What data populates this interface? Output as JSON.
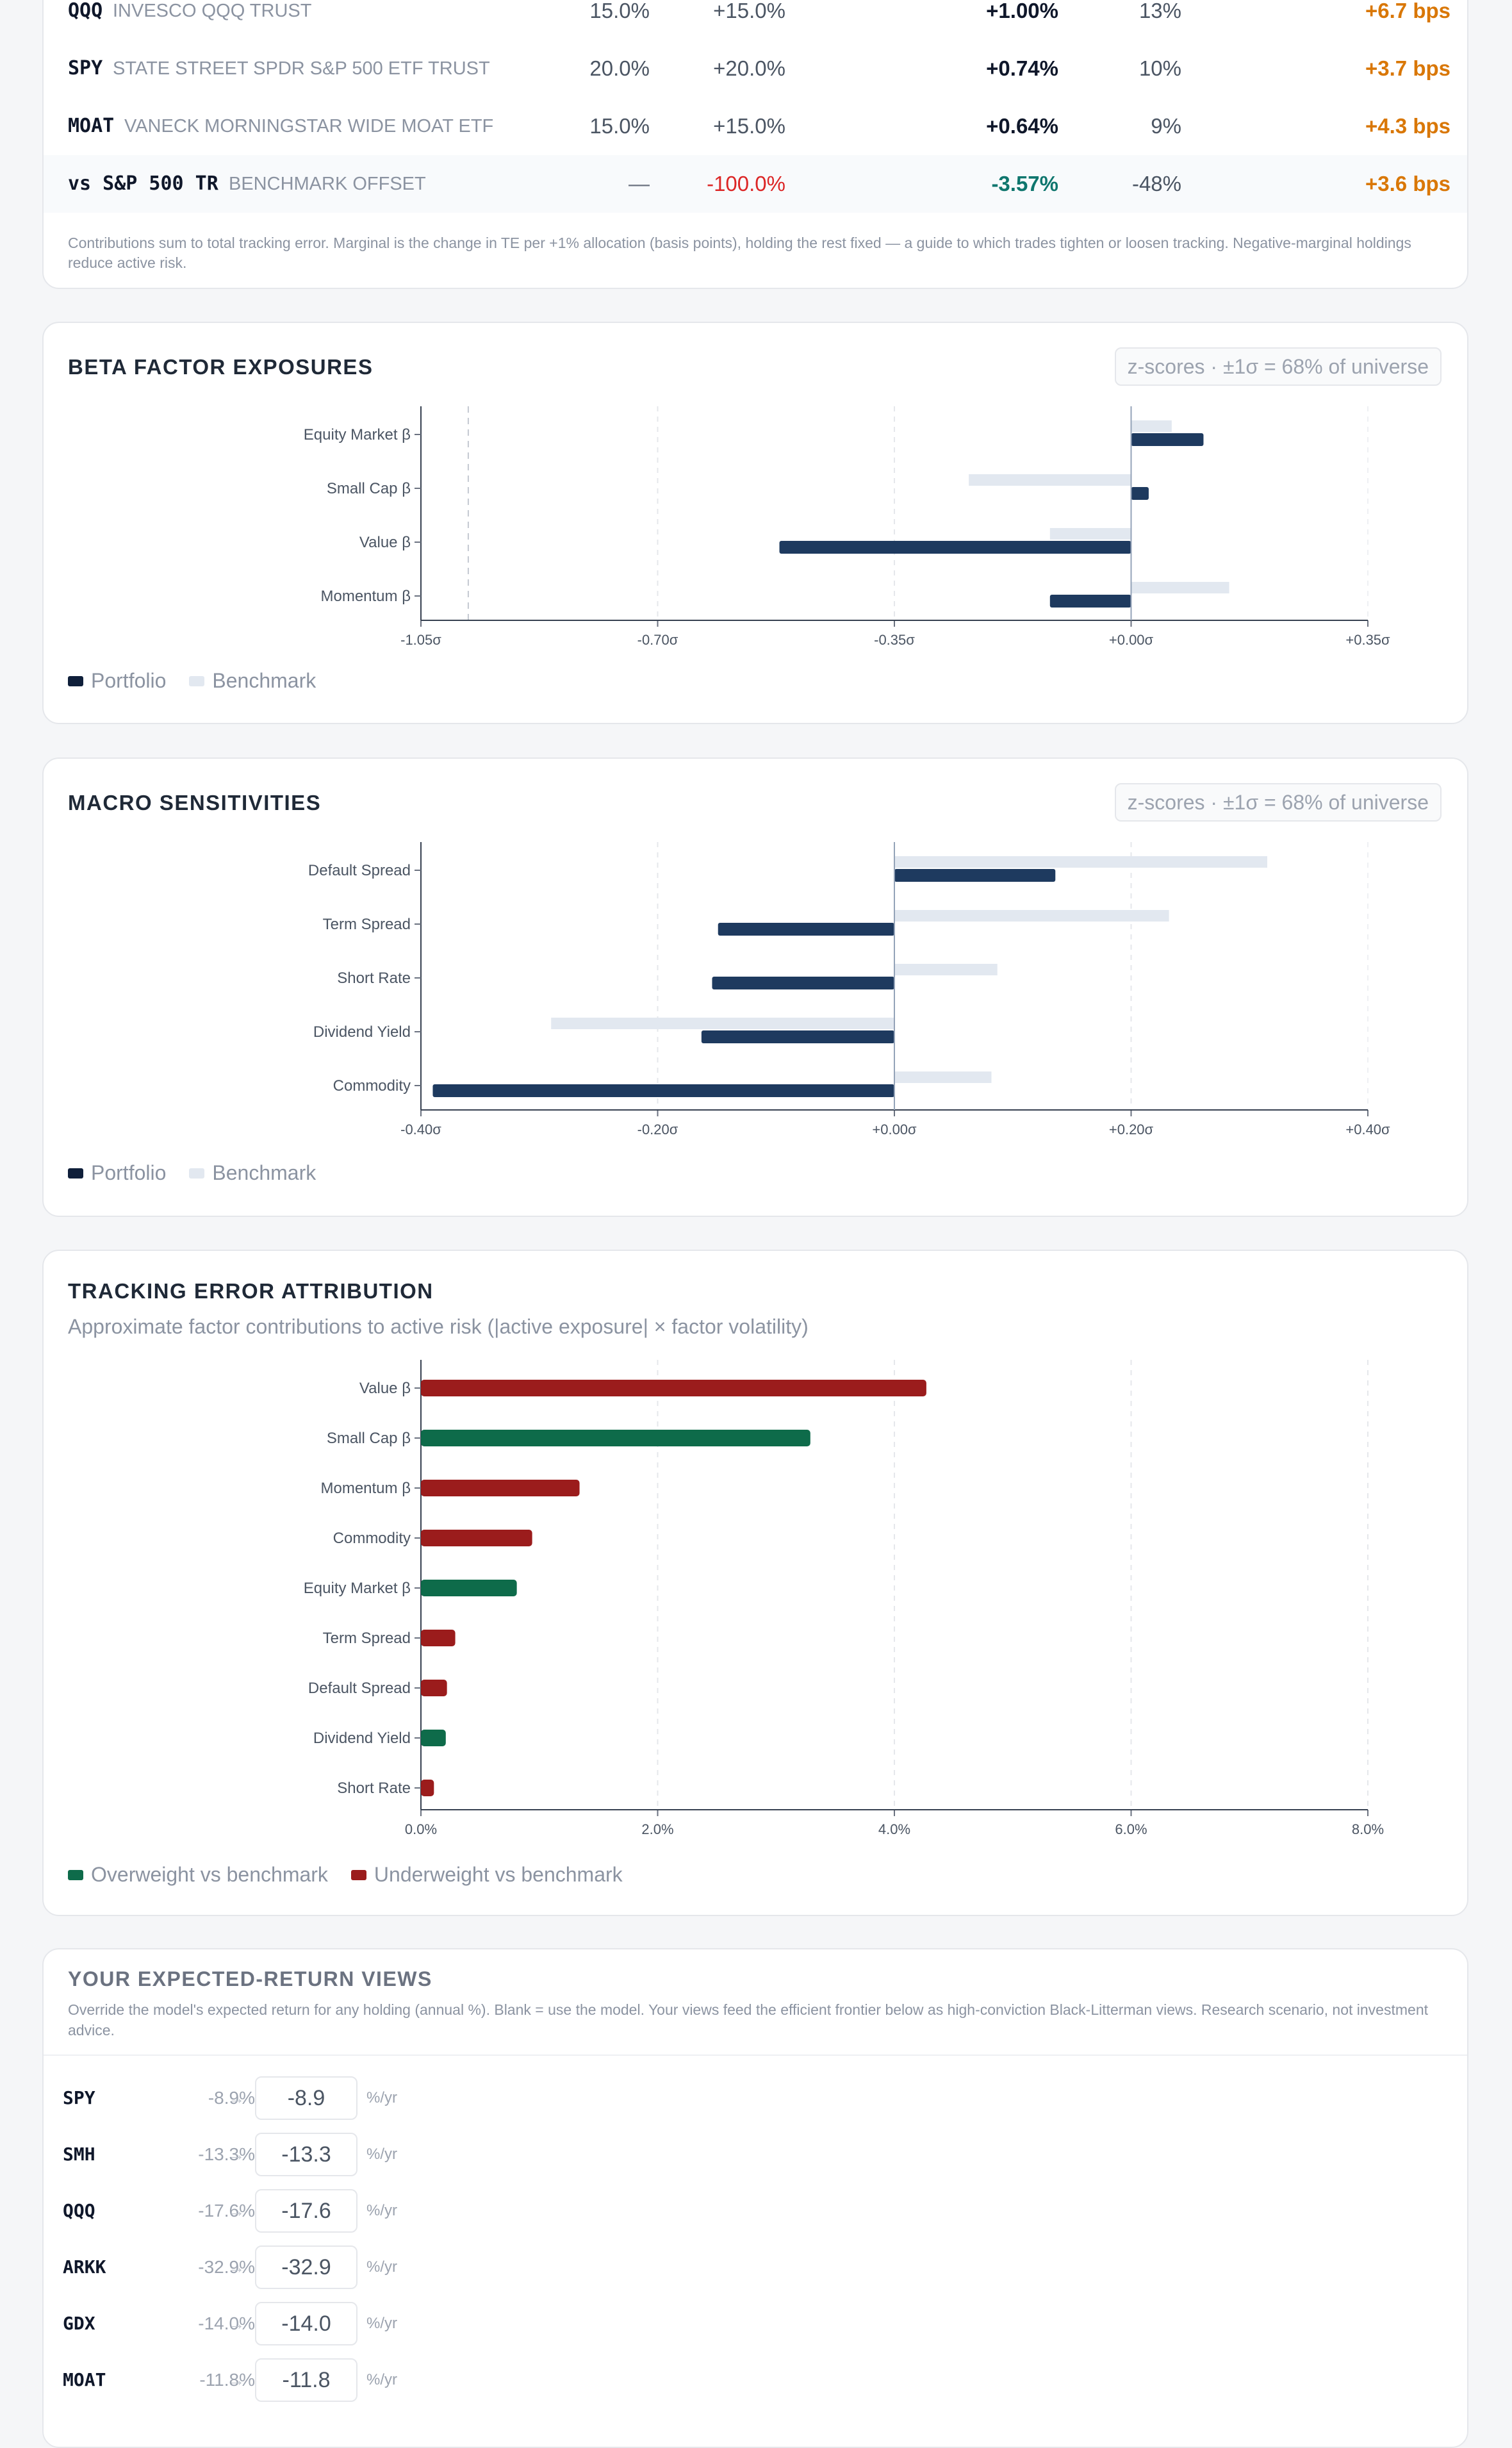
{
  "holdings_table": {
    "rows": [
      {
        "ticker": "QQQ",
        "name": "INVESCO QQQ TRUST",
        "weight": "15.0%",
        "active": "+15.0%",
        "contribution": "+1.00%",
        "share": "13%",
        "marginal": "+6.7 bps"
      },
      {
        "ticker": "SPY",
        "name": "STATE STREET SPDR S&P 500 ETF TRUST",
        "weight": "20.0%",
        "active": "+20.0%",
        "contribution": "+0.74%",
        "share": "10%",
        "marginal": "+3.7 bps"
      },
      {
        "ticker": "MOAT",
        "name": "VANECK MORNINGSTAR WIDE MOAT ETF",
        "weight": "15.0%",
        "active": "+15.0%",
        "contribution": "+0.64%",
        "share": "9%",
        "marginal": "+4.3 bps"
      },
      {
        "ticker": "vs S&P 500 TR",
        "name": "BENCHMARK OFFSET",
        "weight": "—",
        "active": "-100.0%",
        "contribution": "-3.57%",
        "share": "-48%",
        "marginal": "+3.6 bps"
      }
    ],
    "note": "Contributions sum to total tracking error. Marginal is the change in TE per +1% allocation (basis points), holding the rest fixed — a guide to which trades tighten or loosen tracking. Negative-marginal holdings reduce active risk.",
    "colors": {
      "positive_marginal": "#d97706",
      "negative_active": "#dc2626",
      "negative_contribution": "#0f766e"
    }
  },
  "beta_factor": {
    "title": "BETA FACTOR EXPOSURES",
    "pill": "z-scores · ±1σ = 68% of universe",
    "legend": {
      "portfolio": "Portfolio",
      "benchmark": "Benchmark"
    }
  },
  "macro": {
    "title": "MACRO SENSITIVITIES",
    "pill": "z-scores · ±1σ = 68% of universe",
    "legend": {
      "portfolio": "Portfolio",
      "benchmark": "Benchmark"
    }
  },
  "tracking_error": {
    "title": "TRACKING ERROR ATTRIBUTION",
    "subtitle": "Approximate factor contributions to active risk (|active exposure| × factor volatility)",
    "legend": {
      "overweight": "Overweight vs benchmark",
      "underweight": "Underweight vs benchmark"
    }
  },
  "views": {
    "title": "YOUR EXPECTED-RETURN VIEWS",
    "description": "Override the model's expected return for any holding (annual %). Blank = use the model. Your views feed the efficient frontier below as high-conviction Black-Litterman views. Research scenario, not investment advice.",
    "unit": "%/yr",
    "arrow": "→",
    "rows": [
      {
        "ticker": "SPY",
        "model": "-8.9%",
        "value": "-8.9"
      },
      {
        "ticker": "SMH",
        "model": "-13.3%",
        "value": "-13.3"
      },
      {
        "ticker": "QQQ",
        "model": "-17.6%",
        "value": "-17.6"
      },
      {
        "ticker": "ARKK",
        "model": "-32.9%",
        "value": "-32.9"
      },
      {
        "ticker": "GDX",
        "model": "-14.0%",
        "value": "-14.0"
      },
      {
        "ticker": "MOAT",
        "model": "-11.8%",
        "value": "-11.8"
      }
    ]
  },
  "chart_data": [
    {
      "type": "bar",
      "orientation": "horizontal",
      "title": "BETA FACTOR EXPOSURES",
      "categories": [
        "Equity Market β",
        "Small Cap β",
        "Value β",
        "Momentum β"
      ],
      "series": [
        {
          "name": "Benchmark",
          "values": [
            0.06,
            -0.24,
            -0.12,
            0.145
          ]
        },
        {
          "name": "Portfolio",
          "values": [
            0.107,
            0.026,
            -0.52,
            -0.12
          ]
        }
      ],
      "xlim": [
        -1.05,
        0.35
      ],
      "xticks": [
        "-1.05σ",
        "-0.70σ",
        "-0.35σ",
        "+0.00σ",
        "+0.35σ"
      ],
      "reference_line": -0.98,
      "grid": true,
      "colors": {
        "Portfolio": "#1e3a5f",
        "Benchmark": "#e2e8f0"
      }
    },
    {
      "type": "bar",
      "orientation": "horizontal",
      "title": "MACRO SENSITIVITIES",
      "categories": [
        "Default Spread",
        "Term Spread",
        "Short Rate",
        "Dividend Yield",
        "Commodity"
      ],
      "series": [
        {
          "name": "Benchmark",
          "values": [
            0.315,
            0.232,
            0.087,
            -0.29,
            0.082
          ]
        },
        {
          "name": "Portfolio",
          "values": [
            0.136,
            -0.149,
            -0.154,
            -0.163,
            -0.39
          ]
        }
      ],
      "xlim": [
        -0.4,
        0.4
      ],
      "xticks": [
        "-0.40σ",
        "-0.20σ",
        "+0.00σ",
        "+0.20σ",
        "+0.40σ"
      ],
      "grid": true,
      "colors": {
        "Portfolio": "#1e3a5f",
        "Benchmark": "#e2e8f0"
      }
    },
    {
      "type": "bar",
      "orientation": "horizontal",
      "title": "TRACKING ERROR ATTRIBUTION",
      "categories": [
        "Value β",
        "Small Cap β",
        "Momentum β",
        "Commodity",
        "Equity Market β",
        "Term Spread",
        "Default Spread",
        "Dividend Yield",
        "Short Rate"
      ],
      "values": [
        4.27,
        3.29,
        1.34,
        0.94,
        0.81,
        0.29,
        0.22,
        0.21,
        0.11
      ],
      "direction": [
        "under",
        "over",
        "under",
        "under",
        "over",
        "under",
        "under",
        "over",
        "under"
      ],
      "xlim": [
        0,
        8
      ],
      "xticks": [
        "0.0%",
        "2.0%",
        "4.0%",
        "6.0%",
        "8.0%"
      ],
      "grid": true,
      "colors": {
        "over": "#0e6b4a",
        "under": "#9b1c1c"
      }
    }
  ]
}
